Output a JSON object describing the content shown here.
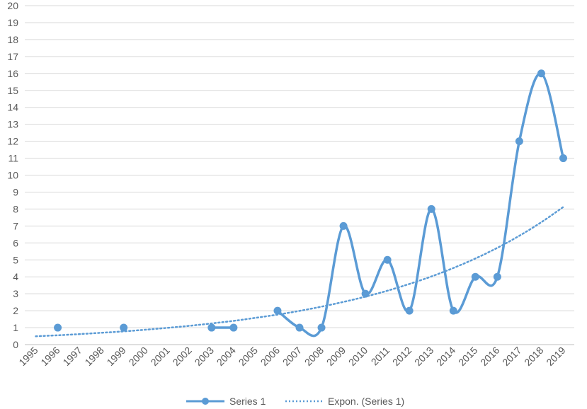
{
  "chart_data": {
    "type": "line",
    "title": "",
    "xlabel": "",
    "ylabel": "",
    "x_categories": [
      "1995",
      "1996",
      "1997",
      "1998",
      "1999",
      "2000",
      "2001",
      "2002",
      "2003",
      "2004",
      "2005",
      "2006",
      "2007",
      "2008",
      "2009",
      "2010",
      "2011",
      "2012",
      "2013",
      "2014",
      "2015",
      "2016",
      "2017",
      "2018",
      "2019"
    ],
    "yticks": [
      "0",
      "1",
      "2",
      "3",
      "4",
      "5",
      "6",
      "7",
      "8",
      "9",
      "10",
      "11",
      "12",
      "13",
      "14",
      "15",
      "16",
      "17",
      "18",
      "19",
      "20"
    ],
    "ylim": [
      0,
      20
    ],
    "grid": true,
    "legend_position": "bottom",
    "series": [
      {
        "name": "Series 1",
        "style": "smoothed line with markers",
        "color": "#5b9bd5",
        "values": [
          null,
          1,
          null,
          null,
          1,
          null,
          null,
          null,
          1,
          1,
          null,
          2,
          1,
          1,
          7,
          3,
          5,
          2,
          8,
          2,
          4,
          4,
          12,
          16,
          11
        ]
      },
      {
        "name": "Expon. (Series 1)",
        "style": "dotted trendline",
        "color": "#5b9bd5",
        "values": [
          0.49,
          0.55,
          0.62,
          0.7,
          0.78,
          0.88,
          0.99,
          1.11,
          1.25,
          1.4,
          1.58,
          1.77,
          1.99,
          2.24,
          2.52,
          2.83,
          3.18,
          3.58,
          4.02,
          4.52,
          5.08,
          5.71,
          6.42,
          7.22,
          8.12
        ]
      }
    ]
  }
}
